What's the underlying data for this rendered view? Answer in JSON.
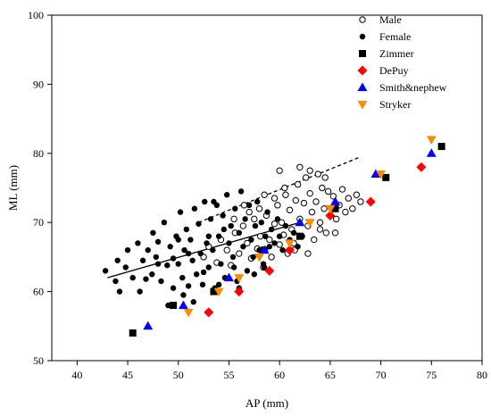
{
  "chart_data": {
    "type": "scatter",
    "xlabel": "AP (mm)",
    "ylabel": "ML (mm)",
    "xlim": [
      37.5,
      80
    ],
    "ylim": [
      50,
      100
    ],
    "x_ticks": [
      "40",
      "45",
      "50",
      "55",
      "60",
      "65",
      "70",
      "75",
      "80"
    ],
    "y_ticks": [
      "50",
      "60",
      "70",
      "80",
      "90",
      "100"
    ],
    "grid": false,
    "legend_position": "top-right",
    "series": [
      {
        "name": "Male",
        "marker": "open-circle",
        "color": "#000000",
        "points": [
          [
            52.5,
            65.0
          ],
          [
            53.0,
            66.5
          ],
          [
            53.8,
            64.2
          ],
          [
            54.2,
            67.5
          ],
          [
            54.8,
            66.0
          ],
          [
            55.2,
            63.8
          ],
          [
            55.6,
            68.5
          ],
          [
            56.0,
            65.5
          ],
          [
            56.4,
            69.5
          ],
          [
            56.8,
            67.0
          ],
          [
            57.2,
            64.8
          ],
          [
            57.5,
            70.5
          ],
          [
            57.8,
            66.2
          ],
          [
            58.1,
            68.0
          ],
          [
            58.4,
            63.5
          ],
          [
            58.7,
            71.0
          ],
          [
            59.0,
            67.5
          ],
          [
            59.2,
            65.0
          ],
          [
            59.5,
            69.8
          ],
          [
            59.8,
            72.5
          ],
          [
            60.0,
            66.8
          ],
          [
            60.2,
            70.0
          ],
          [
            60.4,
            68.2
          ],
          [
            60.6,
            74.0
          ],
          [
            60.8,
            65.5
          ],
          [
            61.0,
            71.8
          ],
          [
            61.2,
            69.0
          ],
          [
            61.4,
            67.0
          ],
          [
            61.6,
            73.2
          ],
          [
            61.8,
            75.5
          ],
          [
            62.0,
            70.5
          ],
          [
            62.2,
            68.0
          ],
          [
            62.4,
            72.8
          ],
          [
            62.6,
            76.5
          ],
          [
            62.8,
            69.5
          ],
          [
            63.0,
            74.2
          ],
          [
            63.2,
            71.5
          ],
          [
            63.4,
            67.5
          ],
          [
            63.6,
            73.0
          ],
          [
            63.8,
            77.0
          ],
          [
            64.0,
            70.0
          ],
          [
            64.2,
            75.0
          ],
          [
            64.4,
            72.0
          ],
          [
            64.6,
            68.5
          ],
          [
            64.8,
            74.5
          ],
          [
            65.0,
            71.0
          ],
          [
            65.3,
            73.8
          ],
          [
            65.6,
            70.5
          ],
          [
            65.9,
            72.5
          ],
          [
            66.2,
            74.8
          ],
          [
            66.5,
            71.5
          ],
          [
            66.8,
            73.5
          ],
          [
            67.2,
            72.0
          ],
          [
            67.6,
            74.0
          ],
          [
            68.0,
            73.0
          ],
          [
            62.0,
            78.0
          ],
          [
            63.0,
            77.5
          ],
          [
            64.5,
            76.5
          ],
          [
            60.0,
            77.5
          ],
          [
            58.0,
            72.0
          ],
          [
            57.0,
            71.5
          ],
          [
            59.5,
            73.5
          ],
          [
            61.5,
            66.0
          ],
          [
            62.8,
            65.5
          ],
          [
            55.5,
            70.5
          ],
          [
            56.5,
            72.5
          ],
          [
            58.5,
            74.0
          ],
          [
            60.5,
            75.0
          ],
          [
            64.0,
            69.0
          ],
          [
            65.5,
            68.5
          ]
        ]
      },
      {
        "name": "Female",
        "marker": "filled-circle",
        "color": "#000000",
        "points": [
          [
            42.8,
            63.0
          ],
          [
            44.2,
            60.0
          ],
          [
            44.8,
            63.5
          ],
          [
            45.5,
            62.0
          ],
          [
            46.2,
            60.0
          ],
          [
            46.5,
            64.5
          ],
          [
            47.0,
            66.0
          ],
          [
            47.4,
            62.5
          ],
          [
            47.8,
            65.0
          ],
          [
            48.0,
            67.2
          ],
          [
            48.3,
            61.5
          ],
          [
            48.6,
            70.0
          ],
          [
            48.9,
            63.8
          ],
          [
            49.2,
            66.5
          ],
          [
            49.5,
            60.5
          ],
          [
            49.8,
            68.0
          ],
          [
            50.0,
            64.0
          ],
          [
            50.2,
            71.5
          ],
          [
            50.4,
            62.0
          ],
          [
            50.6,
            66.0
          ],
          [
            50.8,
            69.0
          ],
          [
            51.0,
            60.8
          ],
          [
            51.2,
            67.5
          ],
          [
            51.4,
            64.5
          ],
          [
            51.6,
            72.0
          ],
          [
            51.8,
            62.5
          ],
          [
            52.0,
            69.8
          ],
          [
            52.2,
            65.5
          ],
          [
            52.4,
            61.0
          ],
          [
            52.6,
            73.0
          ],
          [
            52.8,
            67.0
          ],
          [
            53.0,
            63.5
          ],
          [
            53.2,
            70.5
          ],
          [
            53.4,
            66.0
          ],
          [
            53.6,
            60.5
          ],
          [
            53.8,
            72.5
          ],
          [
            54.0,
            68.0
          ],
          [
            54.2,
            64.0
          ],
          [
            54.4,
            71.0
          ],
          [
            54.6,
            62.0
          ],
          [
            54.8,
            74.0
          ],
          [
            55.0,
            67.0
          ],
          [
            55.2,
            69.5
          ],
          [
            55.4,
            65.0
          ],
          [
            55.6,
            72.0
          ],
          [
            55.8,
            61.5
          ],
          [
            56.0,
            68.5
          ],
          [
            56.2,
            74.5
          ],
          [
            56.4,
            66.5
          ],
          [
            56.6,
            70.5
          ],
          [
            56.8,
            63.0
          ],
          [
            57.0,
            72.5
          ],
          [
            57.2,
            67.5
          ],
          [
            57.4,
            65.0
          ],
          [
            57.6,
            69.5
          ],
          [
            57.8,
            73.0
          ],
          [
            58.0,
            66.0
          ],
          [
            58.2,
            70.0
          ],
          [
            58.4,
            64.0
          ],
          [
            58.6,
            68.0
          ],
          [
            58.8,
            71.5
          ],
          [
            59.0,
            66.5
          ],
          [
            59.2,
            69.0
          ],
          [
            59.5,
            67.0
          ],
          [
            59.8,
            70.5
          ],
          [
            60.0,
            68.0
          ],
          [
            60.3,
            66.0
          ],
          [
            60.6,
            69.5
          ],
          [
            61.0,
            67.5
          ],
          [
            61.4,
            68.5
          ],
          [
            61.8,
            66.5
          ],
          [
            62.2,
            68.0
          ],
          [
            49.0,
            58.0
          ],
          [
            50.5,
            59.5
          ],
          [
            51.5,
            58.5
          ],
          [
            45.0,
            66.0
          ],
          [
            46.0,
            67.0
          ],
          [
            47.5,
            68.5
          ],
          [
            53.5,
            73.0
          ],
          [
            54.5,
            69.0
          ],
          [
            55.5,
            63.5
          ],
          [
            52.5,
            62.8
          ],
          [
            51.0,
            65.5
          ],
          [
            49.5,
            64.8
          ],
          [
            57.5,
            62.5
          ],
          [
            58.5,
            63.5
          ],
          [
            56.0,
            60.5
          ],
          [
            54.0,
            61.0
          ],
          [
            53.0,
            68.0
          ],
          [
            50.0,
            67.5
          ],
          [
            48.0,
            64.0
          ],
          [
            46.8,
            61.8
          ],
          [
            44.0,
            64.5
          ],
          [
            43.8,
            61.5
          ]
        ]
      },
      {
        "name": "Zimmer",
        "marker": "square",
        "color": "#000000",
        "points": [
          [
            45.5,
            54.0
          ],
          [
            49.5,
            58.0
          ],
          [
            53.5,
            60.0
          ],
          [
            58.5,
            66.0
          ],
          [
            62.0,
            68.0
          ],
          [
            65.5,
            72.0
          ],
          [
            70.5,
            76.5
          ],
          [
            76.0,
            81.0
          ]
        ]
      },
      {
        "name": "DePuy",
        "marker": "diamond",
        "color": "#ff0000",
        "points": [
          [
            53.0,
            57.0
          ],
          [
            56.0,
            60.0
          ],
          [
            59.0,
            63.0
          ],
          [
            61.0,
            66.0
          ],
          [
            65.0,
            71.0
          ],
          [
            69.0,
            73.0
          ],
          [
            74.0,
            78.0
          ]
        ]
      },
      {
        "name": "Smith&nephew",
        "marker": "triangle-up",
        "color": "#0000ff",
        "points": [
          [
            47.0,
            55.0
          ],
          [
            50.5,
            58.0
          ],
          [
            55.0,
            62.0
          ],
          [
            58.5,
            66.0
          ],
          [
            62.0,
            70.0
          ],
          [
            65.5,
            73.0
          ],
          [
            69.5,
            77.0
          ],
          [
            75.0,
            80.0
          ]
        ]
      },
      {
        "name": "Stryker",
        "marker": "triangle-down",
        "color": "#ff8c00",
        "points": [
          [
            51.0,
            57.0
          ],
          [
            54.0,
            60.0
          ],
          [
            56.0,
            62.0
          ],
          [
            58.0,
            65.0
          ],
          [
            61.0,
            67.0
          ],
          [
            63.0,
            70.0
          ],
          [
            65.0,
            72.0
          ],
          [
            70.0,
            77.0
          ],
          [
            75.0,
            82.0
          ]
        ]
      }
    ],
    "fit_lines": [
      {
        "for": "Female",
        "style": "solid",
        "color": "#000000",
        "from": [
          43.0,
          62.0
        ],
        "to": [
          62.0,
          70.0
        ]
      },
      {
        "for": "Male",
        "style": "dashed",
        "color": "#000000",
        "from": [
          52.0,
          70.0
        ],
        "to": [
          68.0,
          79.5
        ]
      }
    ]
  }
}
